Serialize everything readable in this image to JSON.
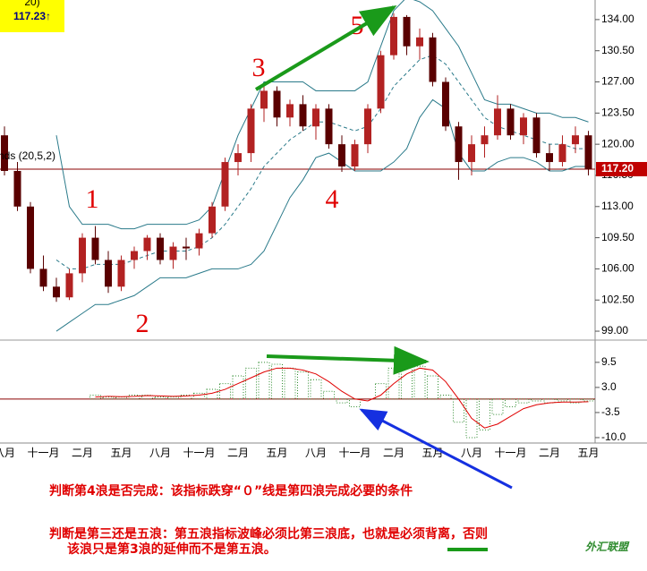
{
  "chart_data": [
    {
      "type": "candlestick",
      "quote_label": "117.23↑",
      "quote_partial": "20)",
      "indicator_label": "nds (20,5,2)",
      "categories": [
        "八月",
        null,
        null,
        "十一月",
        null,
        null,
        "二月",
        null,
        null,
        "五月",
        null,
        null,
        "八月",
        null,
        null,
        "十一月",
        null,
        null,
        "二月",
        null,
        null,
        "五月",
        null,
        null,
        "八月",
        null,
        null,
        "十一月",
        null,
        null,
        "二月",
        null,
        null,
        "五月",
        null,
        null,
        "八月",
        null,
        null,
        "十一月",
        null,
        null,
        "二月",
        null,
        null,
        "五月"
      ],
      "open": [
        121,
        117,
        113,
        106,
        104,
        102.8,
        105.5,
        109.5,
        107,
        104,
        107,
        108,
        109.5,
        107,
        108.5,
        108.3,
        110,
        113,
        118,
        119,
        124,
        126,
        123,
        124.5,
        122,
        124,
        120,
        117.5,
        120,
        124,
        130,
        134.3,
        131,
        132,
        127,
        122,
        118,
        120,
        121,
        124,
        121,
        123,
        119,
        118,
        120,
        121
      ],
      "high": [
        122,
        118,
        113.5,
        107.5,
        105,
        106,
        110,
        110.8,
        108,
        107.5,
        108.5,
        109.8,
        110,
        109,
        109.5,
        110.5,
        113.5,
        118.5,
        120,
        124.5,
        126.7,
        126.5,
        125,
        125.5,
        124.5,
        124.5,
        121,
        120.5,
        124.5,
        130.5,
        134.7,
        134.5,
        133,
        132.5,
        127.5,
        122.5,
        121,
        122,
        125.5,
        124.5,
        123.5,
        123.5,
        120,
        121,
        122,
        121.5
      ],
      "low": [
        116.5,
        112.5,
        105.5,
        103.5,
        102.3,
        102.5,
        104.5,
        106.5,
        103.3,
        103.5,
        106,
        107,
        106.5,
        106,
        107,
        107.5,
        109.5,
        112.5,
        116.5,
        118,
        122.5,
        122,
        122,
        121.5,
        120.5,
        119.5,
        116.9,
        117,
        119,
        123.5,
        129.5,
        130,
        129.5,
        126.5,
        121.5,
        116,
        116.5,
        118.5,
        120.5,
        120.5,
        120,
        118.5,
        117,
        117.5,
        119,
        116.5
      ],
      "close": [
        117,
        113,
        106,
        104,
        102.8,
        105.5,
        109.5,
        107,
        104,
        107,
        108,
        109.5,
        107,
        108.5,
        108.3,
        110,
        113,
        118,
        119,
        124,
        126,
        123,
        124.5,
        122,
        124,
        120,
        117.5,
        120,
        124,
        130,
        134.3,
        131,
        132,
        127,
        122,
        118,
        120,
        121,
        124,
        121,
        123,
        119,
        118,
        120,
        121,
        117.2
      ],
      "up_color": "#b22222",
      "down_color": "#5a0000",
      "bands": {
        "color": "#2a7a8a",
        "upper": [
          null,
          null,
          null,
          null,
          121,
          113,
          111,
          111,
          111,
          110.5,
          110.5,
          111,
          111,
          111,
          111,
          111.5,
          113,
          117,
          121,
          124,
          127,
          127,
          127,
          127,
          126,
          126,
          126,
          126,
          127,
          131,
          135,
          136.5,
          136,
          135,
          133,
          131,
          128,
          125,
          124.5,
          124.5,
          124,
          123.5,
          123.5,
          123,
          123,
          122.5
        ],
        "middle": [
          null,
          null,
          null,
          null,
          107,
          106,
          106,
          106.5,
          106.5,
          106.5,
          107,
          107.5,
          108,
          108,
          108,
          108.5,
          109.5,
          111,
          113,
          115,
          117.5,
          119,
          120.5,
          121.5,
          122.5,
          122.5,
          122,
          121.5,
          122,
          124,
          126.5,
          128,
          129.5,
          130,
          129,
          127,
          125,
          123,
          122,
          121.5,
          121,
          120.5,
          120,
          120,
          119.5,
          119.5
        ],
        "lower": [
          null,
          null,
          null,
          null,
          99,
          100,
          101,
          102,
          102,
          102.5,
          103,
          104,
          105,
          105,
          105,
          105.5,
          106,
          106,
          106,
          106.5,
          108,
          111,
          114,
          116,
          118.5,
          119,
          118,
          117,
          117,
          117,
          118,
          119.5,
          123,
          125,
          124,
          119,
          117,
          117,
          118,
          118.5,
          118.5,
          118,
          117,
          117,
          117.5,
          117.5
        ]
      },
      "last_price": {
        "value": 117.2,
        "label": "117.20"
      },
      "ylim": [
        98.2,
        136.2
      ],
      "yticks": [
        {
          "value": 134,
          "label": "134.00"
        },
        {
          "value": 130.5,
          "label": "130.50"
        },
        {
          "value": 127,
          "label": "127.00"
        },
        {
          "value": 123.5,
          "label": "123.50"
        },
        {
          "value": 120,
          "label": "120.00"
        },
        {
          "value": 116.5,
          "label": "116.50"
        },
        {
          "value": 113,
          "label": "113.00"
        },
        {
          "value": 109.5,
          "label": "109.50"
        },
        {
          "value": 106,
          "label": "106.00"
        },
        {
          "value": 102.5,
          "label": "102.50"
        },
        {
          "value": 99,
          "label": "99.00"
        }
      ],
      "wave_labels": [
        "1",
        "2",
        "3",
        "4",
        "5"
      ]
    },
    {
      "type": "macd",
      "histogram": [
        null,
        null,
        null,
        null,
        null,
        null,
        null,
        1,
        0.5,
        0.5,
        1,
        1,
        0.5,
        0.5,
        1,
        1.5,
        2.5,
        4,
        6,
        8,
        9.5,
        9,
        8,
        7,
        5,
        2,
        -1,
        -2,
        0,
        4,
        8,
        9,
        8.5,
        6,
        1,
        -6,
        -10,
        -8,
        -4,
        -2,
        -1,
        -0.5,
        -1,
        -0.5,
        -1,
        -0.5
      ],
      "signal": [
        null,
        null,
        null,
        null,
        null,
        null,
        null,
        0.5,
        0.7,
        0.6,
        0.7,
        0.9,
        0.8,
        0.7,
        0.8,
        1,
        1.5,
        2.5,
        4,
        5.5,
        7,
        8,
        8,
        7.5,
        6.5,
        4.5,
        2,
        0,
        -0.5,
        1,
        4,
        6.5,
        8,
        7.5,
        4.5,
        0,
        -5,
        -7.5,
        -6.5,
        -4.5,
        -2.5,
        -1.5,
        -1,
        -0.8,
        -0.8,
        -0.7
      ],
      "histogram_color": "#2e8b2e",
      "signal_color": "#e00000",
      "ylim": [
        -11.4,
        14.8
      ],
      "yticks": [
        9.5,
        {
          "value": 3,
          "label": "3.0"
        },
        -3.5,
        {
          "value": -10,
          "label": "-10.0"
        }
      ]
    }
  ],
  "notes": [
    "判断第4浪是否完成：该指标跌穿“０”线是第四浪完成必要的条件",
    "判断是第三还是五浪：第五浪指标波峰必须比第三浪底，也就是必须背离，否则",
    "该浪只是第3浪的延伸而不是第五浪。"
  ],
  "logo": "外汇联盟"
}
